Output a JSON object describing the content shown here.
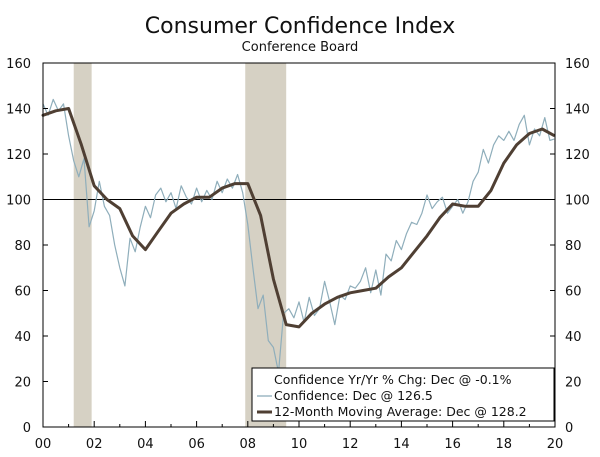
{
  "chart_data": {
    "type": "line",
    "title": "Consumer Confidence Index",
    "subtitle": "Conference Board",
    "xlabel": "",
    "ylabel": "",
    "xlim": [
      2000,
      2020
    ],
    "ylim": [
      0,
      160
    ],
    "x_ticks": [
      2000,
      2002,
      2004,
      2006,
      2008,
      2010,
      2012,
      2014,
      2016,
      2018,
      2020
    ],
    "x_tick_labels": [
      "00",
      "02",
      "04",
      "06",
      "08",
      "10",
      "12",
      "14",
      "16",
      "18",
      "20"
    ],
    "y_ticks": [
      0,
      20,
      40,
      60,
      80,
      100,
      120,
      140,
      160
    ],
    "y_tick_labels": [
      "0",
      "20",
      "40",
      "60",
      "80",
      "100",
      "120",
      "140",
      "160"
    ],
    "reference_line": 100,
    "recessions": [
      {
        "start": 2001.2,
        "end": 2001.9
      },
      {
        "start": 2007.9,
        "end": 2009.5
      }
    ],
    "colors": {
      "recession": "#d6d1c4",
      "confidence": "#8faebb",
      "moving_average": "#4f3f33",
      "reference": "#000000"
    },
    "legend": {
      "placement": "bottom-right",
      "entries": [
        "Confidence Yr/Yr % Chg: Dec @ -0.1%",
        "Confidence: Dec @ 126.5",
        "12-Month Moving Average: Dec @ 128.2"
      ]
    },
    "series": [
      {
        "name": "Confidence",
        "x": [
          2000.0,
          2000.2,
          2000.4,
          2000.6,
          2000.8,
          2001.0,
          2001.2,
          2001.4,
          2001.6,
          2001.8,
          2002.0,
          2002.2,
          2002.4,
          2002.6,
          2002.8,
          2003.0,
          2003.2,
          2003.4,
          2003.6,
          2003.8,
          2004.0,
          2004.2,
          2004.4,
          2004.6,
          2004.8,
          2005.0,
          2005.2,
          2005.4,
          2005.6,
          2005.8,
          2006.0,
          2006.2,
          2006.4,
          2006.6,
          2006.8,
          2007.0,
          2007.2,
          2007.4,
          2007.6,
          2007.8,
          2008.0,
          2008.2,
          2008.4,
          2008.6,
          2008.8,
          2009.0,
          2009.2,
          2009.4,
          2009.6,
          2009.8,
          2010.0,
          2010.2,
          2010.4,
          2010.6,
          2010.8,
          2011.0,
          2011.2,
          2011.4,
          2011.6,
          2011.8,
          2012.0,
          2012.2,
          2012.4,
          2012.6,
          2012.8,
          2013.0,
          2013.2,
          2013.4,
          2013.6,
          2013.8,
          2014.0,
          2014.2,
          2014.4,
          2014.6,
          2014.8,
          2015.0,
          2015.2,
          2015.4,
          2015.6,
          2015.8,
          2016.0,
          2016.2,
          2016.4,
          2016.6,
          2016.8,
          2017.0,
          2017.2,
          2017.4,
          2017.6,
          2017.8,
          2018.0,
          2018.2,
          2018.4,
          2018.6,
          2018.8,
          2019.0,
          2019.2,
          2019.4,
          2019.6,
          2019.8,
          2019.95
        ],
        "values": [
          142,
          137,
          144,
          139,
          142,
          128,
          117,
          110,
          118,
          88,
          95,
          108,
          97,
          93,
          80,
          70,
          62,
          83,
          77,
          88,
          97,
          92,
          102,
          105,
          99,
          103,
          96,
          106,
          101,
          98,
          105,
          99,
          104,
          100,
          108,
          103,
          109,
          105,
          111,
          103,
          89,
          70,
          52,
          58,
          38,
          35,
          24,
          50,
          52,
          48,
          55,
          46,
          57,
          49,
          52,
          64,
          55,
          45,
          58,
          56,
          62,
          61,
          64,
          70,
          59,
          69,
          58,
          76,
          73,
          82,
          78,
          85,
          90,
          89,
          94,
          102,
          96,
          99,
          101,
          94,
          97,
          100,
          94,
          99,
          108,
          112,
          122,
          116,
          124,
          128,
          126,
          130,
          126,
          133,
          137,
          124,
          131,
          128,
          136,
          126,
          126.5
        ]
      },
      {
        "name": "12-Month Moving Average",
        "x": [
          2000.0,
          2000.5,
          2001.0,
          2001.5,
          2002.0,
          2002.5,
          2003.0,
          2003.5,
          2004.0,
          2004.5,
          2005.0,
          2005.5,
          2006.0,
          2006.5,
          2007.0,
          2007.5,
          2008.0,
          2008.5,
          2009.0,
          2009.5,
          2010.0,
          2010.5,
          2011.0,
          2011.5,
          2012.0,
          2012.5,
          2013.0,
          2013.5,
          2014.0,
          2014.5,
          2015.0,
          2015.5,
          2016.0,
          2016.5,
          2017.0,
          2017.5,
          2018.0,
          2018.5,
          2019.0,
          2019.5,
          2019.95
        ],
        "values": [
          137,
          139,
          140,
          124,
          106,
          100,
          96,
          84,
          78,
          86,
          94,
          98,
          101,
          101,
          105,
          107,
          107,
          93,
          65,
          45,
          44,
          50,
          54,
          57,
          59,
          60,
          61,
          66,
          70,
          77,
          84,
          92,
          98,
          97,
          97,
          104,
          116,
          124,
          129,
          131,
          128.2
        ]
      }
    ]
  }
}
